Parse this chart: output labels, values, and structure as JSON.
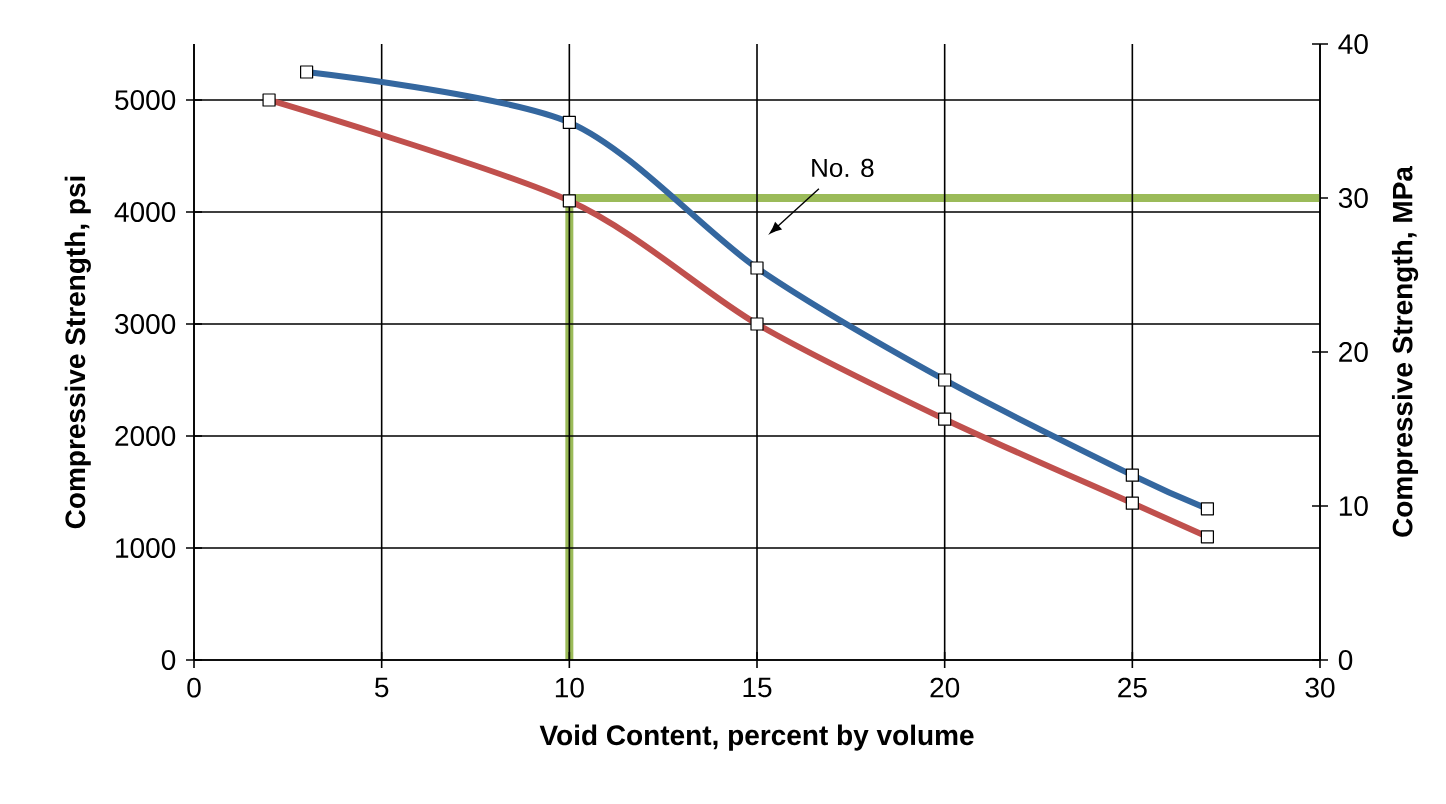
{
  "chart_data": {
    "type": "line",
    "xlabel": "Void Content, percent by volume",
    "ylabel": "Compressive Strength, psi",
    "y2label": "Compressive Strength, MPa",
    "xlim": [
      0,
      30
    ],
    "xticks": [
      0,
      5,
      10,
      15,
      20,
      25,
      30
    ],
    "ylim": [
      0,
      5500
    ],
    "yticks": [
      0,
      1000,
      2000,
      3000,
      4000,
      5000
    ],
    "y2lim": [
      0,
      40
    ],
    "y2ticks": [
      0,
      10,
      20,
      30,
      40
    ],
    "grid": true,
    "marker": "square",
    "annotations": [
      "No. 8"
    ],
    "series": [
      {
        "color": "#34679f",
        "x": [
          3,
          10,
          15,
          20,
          25,
          27
        ],
        "values": [
          5250,
          4800,
          3500,
          2500,
          1650,
          1350
        ]
      },
      {
        "color": "#c0504d",
        "x": [
          2,
          10,
          15,
          20,
          25,
          27
        ],
        "values": [
          5000,
          4100,
          3000,
          2150,
          1400,
          1100
        ]
      },
      {
        "color": "#9bbb59",
        "axis": "y2",
        "marker": "none",
        "x": [
          10,
          10,
          30
        ],
        "values": [
          0,
          30,
          30
        ]
      }
    ]
  }
}
